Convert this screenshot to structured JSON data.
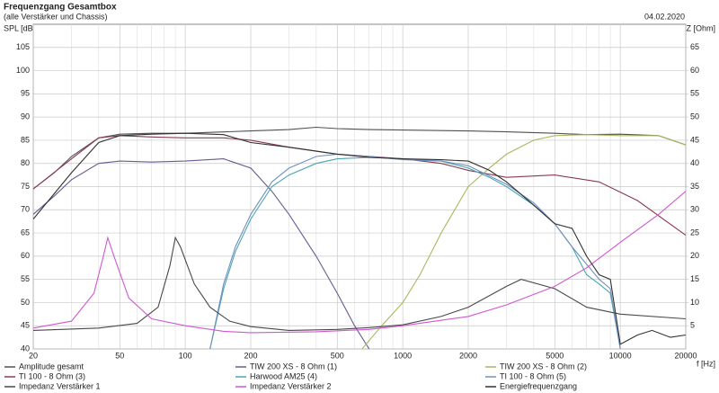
{
  "chart_data": {
    "type": "line",
    "title": "Frequenzgang Gesamtbox",
    "subtitle": "(alle Verstärker und Chassis)",
    "date": "04.02.2020",
    "ylabel": "SPL [dB]",
    "y2label": "Z [Ohm]",
    "xlabel": "f [Hz]",
    "log_x": true,
    "grid": true,
    "xlim": [
      20,
      20000
    ],
    "xticks": [
      20,
      50,
      100,
      200,
      500,
      1000,
      2000,
      5000,
      10000,
      20000
    ],
    "xminor": [
      30,
      40,
      60,
      70,
      80,
      90,
      300,
      400,
      600,
      700,
      800,
      900,
      3000,
      4000,
      6000,
      7000,
      8000,
      9000
    ],
    "ylim": [
      40,
      110
    ],
    "yticks": [
      40,
      45,
      50,
      55,
      60,
      65,
      70,
      75,
      80,
      85,
      90,
      95,
      100,
      105
    ],
    "y2lim": [
      0,
      70
    ],
    "y2ticks": [
      5,
      10,
      15,
      20,
      25,
      30,
      35,
      40,
      45,
      50,
      55,
      60,
      65
    ],
    "series": [
      {
        "name": "Amplitude gesamt",
        "color": "#505050",
        "x": [
          20,
          25,
          30,
          40,
          50,
          70,
          100,
          200,
          300,
          400,
          500,
          700,
          1000,
          2000,
          3000,
          5000,
          7000,
          10000,
          15000,
          20000
        ],
        "values": [
          74.5,
          78,
          81.5,
          85.5,
          86.3,
          86.5,
          86.5,
          87,
          87.3,
          87.8,
          87.5,
          87.3,
          87.2,
          87,
          86.8,
          86.5,
          86.2,
          86.3,
          86,
          84
        ]
      },
      {
        "name": "TIW 200 XS - 8 Ohm (1)",
        "color": "#6a5a90",
        "x": [
          20,
          25,
          30,
          40,
          50,
          70,
          100,
          150,
          200,
          250,
          300,
          400,
          500,
          600,
          700
        ],
        "values": [
          69,
          73,
          76.5,
          80,
          80.5,
          80.3,
          80.5,
          81,
          79,
          74,
          69,
          60,
          52,
          45,
          40
        ]
      },
      {
        "name": "TIW 200 XS - 8 Ohm (2)",
        "color": "#a8b860",
        "x": [
          650,
          800,
          1000,
          1200,
          1500,
          2000,
          2500,
          3000,
          4000,
          5000,
          7000,
          10000,
          15000,
          20000
        ],
        "values": [
          40,
          45,
          50,
          56,
          65,
          75,
          79,
          82,
          85,
          86,
          86.2,
          86,
          86,
          84
        ]
      },
      {
        "name": "TI 100 - 8 Ohm (3)",
        "color": "#8a3a50",
        "x": [
          20,
          30,
          40,
          50,
          70,
          100,
          150,
          200,
          300,
          500,
          1000,
          1500,
          2000,
          3000,
          5000,
          8000,
          12000,
          20000
        ],
        "values": [
          74.5,
          81,
          85.5,
          86,
          85.7,
          85.5,
          85.5,
          85,
          83.5,
          82,
          81,
          80,
          78.5,
          77,
          77.5,
          76,
          72,
          64.5
        ]
      },
      {
        "name": "Harwood AM25 (4)",
        "color": "#4aa5b0",
        "x": [
          130,
          150,
          170,
          200,
          250,
          300,
          400,
          500,
          700,
          1000,
          1500,
          2000,
          2500,
          3000,
          4000,
          5000,
          6000,
          7000,
          8000,
          9000,
          10000
        ],
        "values": [
          40,
          53,
          61,
          68,
          75,
          77.5,
          80,
          81,
          81.3,
          81,
          80.5,
          79,
          77,
          75,
          71,
          67,
          62,
          56,
          54,
          52,
          40
        ]
      },
      {
        "name": "TI 100 - 8 Ohm (5)",
        "color": "#7090c0",
        "x": [
          130,
          150,
          170,
          200,
          250,
          300,
          400,
          500,
          700,
          1000,
          1500,
          2000,
          3000,
          4000,
          5000,
          6000,
          8000,
          9000,
          10000
        ],
        "values": [
          40,
          54,
          62,
          69,
          76,
          79,
          81.5,
          82,
          81.5,
          80.8,
          80.5,
          79.5,
          75.5,
          71.5,
          67,
          62,
          55,
          53,
          40
        ]
      },
      {
        "name": "Impedanz Verstärker 1",
        "color": "#484848",
        "axis": "y2",
        "x": [
          20,
          40,
          60,
          75,
          85,
          90,
          95,
          110,
          130,
          160,
          200,
          300,
          500,
          700,
          1000,
          1500,
          2000,
          3000,
          3500,
          5000,
          7000,
          10000,
          20000
        ],
        "values": [
          4,
          4.5,
          5.5,
          9,
          18,
          24,
          22,
          14,
          9,
          6,
          4.8,
          4,
          4.2,
          4.6,
          5.2,
          7,
          9,
          13.5,
          15,
          13,
          9,
          7.5,
          6.5
        ]
      },
      {
        "name": "Impedanz Verstärker 2",
        "color": "#d058d0",
        "axis": "y2",
        "x": [
          20,
          30,
          38,
          42,
          44,
          47,
          55,
          70,
          100,
          150,
          200,
          400,
          700,
          1000,
          2000,
          3000,
          5000,
          7000,
          10000,
          15000,
          20000
        ],
        "values": [
          4.5,
          6,
          12,
          20,
          24,
          20,
          11,
          6.5,
          5,
          3.8,
          3.5,
          3.7,
          4.2,
          5,
          7,
          9.5,
          13.5,
          17.5,
          23,
          29,
          34
        ]
      },
      {
        "name": "Energiefrequenzgang",
        "color": "#303030",
        "x": [
          20,
          30,
          40,
          50,
          70,
          100,
          150,
          200,
          300,
          500,
          700,
          1000,
          1500,
          2000,
          2500,
          3000,
          4000,
          5000,
          6000,
          7000,
          8000,
          9000,
          10000,
          12000,
          14000,
          17000,
          20000
        ],
        "values": [
          68,
          78,
          84.5,
          86,
          86.3,
          86.5,
          86.2,
          84.5,
          83.5,
          82,
          81.3,
          81,
          80.8,
          80.5,
          78.5,
          76,
          71,
          67,
          66,
          60,
          56,
          55,
          41,
          43,
          44,
          42.5,
          43
        ]
      }
    ]
  }
}
